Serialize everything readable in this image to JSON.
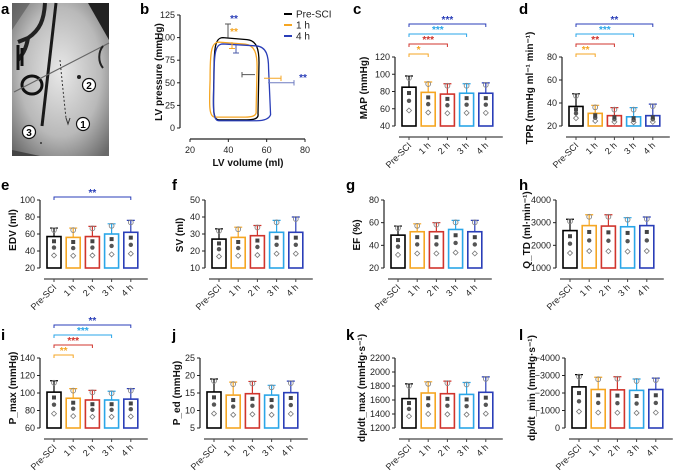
{
  "figure": {
    "panels": {
      "a": {
        "letter": "a",
        "type": "image",
        "description": "fluoroscopy image",
        "markers": [
          "1",
          "2",
          "3"
        ]
      }
    }
  },
  "colors": {
    "pre": "#000000",
    "h1": "#f5a623",
    "h2": "#d0342c",
    "h3": "#2aa6e8",
    "h4": "#2a3eb8"
  },
  "chart_data": [
    {
      "panel": "b",
      "type": "line",
      "title": "",
      "xlabel": "LV volume (ml)",
      "ylabel": "LV pressure (mmHg)",
      "xlim": [
        20,
        80
      ],
      "ylim": [
        0,
        125
      ],
      "xticks": [
        "20",
        "40",
        "60",
        "80"
      ],
      "yticks": [
        "0",
        "25",
        "50",
        "75",
        "100",
        "125"
      ],
      "legend": {
        "placement": "top-right",
        "entries": [
          "Pre-SCI",
          "1 h",
          "4 h"
        ]
      },
      "series": [
        {
          "name": "Pre-SCI",
          "color": "#000000",
          "esv": 33,
          "edv": 56,
          "pmin": 9,
          "pmax": 100
        },
        {
          "name": "1 h",
          "color": "#f5a623",
          "esv": 31,
          "edv": 55,
          "pmin": 12,
          "pmax": 95
        },
        {
          "name": "4 h",
          "color": "#2a3eb8",
          "esv": 33,
          "edv": 61,
          "pmin": 8,
          "pmax": 93
        }
      ],
      "annotations": [
        {
          "text": "**",
          "color": "#2a3eb8",
          "at": "pmax"
        },
        {
          "text": "**",
          "color": "#f5a623",
          "at": "pmax"
        },
        {
          "text": "**",
          "color": "#2a3eb8",
          "at": "edv"
        }
      ]
    },
    {
      "panel": "c",
      "type": "bar",
      "ylabel": "MAP (mmHg)",
      "categories": [
        "Pre-SCI",
        "1 h",
        "2 h",
        "3 h",
        "4 h"
      ],
      "values": [
        85,
        79,
        77,
        78,
        78
      ],
      "errors": [
        13,
        12,
        12,
        11,
        12
      ],
      "ylim": [
        40,
        120
      ],
      "yticks": [
        "40",
        "60",
        "80",
        "100",
        "120"
      ],
      "significance": [
        {
          "to": "1 h",
          "text": "*"
        },
        {
          "to": "2 h",
          "text": "***"
        },
        {
          "to": "3 h",
          "text": "***"
        },
        {
          "to": "4 h",
          "text": "***"
        }
      ]
    },
    {
      "panel": "d",
      "type": "bar",
      "ylabel": "TPR (mmHg ml⁻¹ min⁻¹)",
      "categories": [
        "Pre-SCI",
        "1 h",
        "2 h",
        "3 h",
        "4 h"
      ],
      "values": [
        37,
        31,
        29,
        28,
        29
      ],
      "errors": [
        11,
        7,
        7,
        8,
        10
      ],
      "ylim": [
        20,
        80
      ],
      "yticks": [
        "20",
        "40",
        "60",
        "80"
      ],
      "significance": [
        {
          "to": "1 h",
          "text": "**"
        },
        {
          "to": "2 h",
          "text": "**"
        },
        {
          "to": "3 h",
          "text": "***"
        },
        {
          "to": "4 h",
          "text": "**"
        }
      ]
    },
    {
      "panel": "e",
      "type": "bar",
      "ylabel": "EDV (ml)",
      "categories": [
        "Pre-SCI",
        "1 h",
        "2 h",
        "3 h",
        "4 h"
      ],
      "values": [
        57,
        56,
        57,
        60,
        62
      ],
      "errors": [
        10,
        11,
        12,
        12,
        14
      ],
      "ylim": [
        20,
        100
      ],
      "yticks": [
        "20",
        "40",
        "60",
        "80",
        "100"
      ],
      "significance": [
        {
          "to": "4 h",
          "text": "**"
        }
      ]
    },
    {
      "panel": "f",
      "type": "bar",
      "ylabel": "SV (ml)",
      "categories": [
        "Pre-SCI",
        "1 h",
        "2 h",
        "3 h",
        "4 h"
      ],
      "values": [
        27,
        28,
        29,
        31,
        31
      ],
      "errors": [
        6,
        6,
        6,
        7,
        9
      ],
      "ylim": [
        10,
        50
      ],
      "yticks": [
        "10",
        "20",
        "30",
        "40",
        "50"
      ],
      "significance": []
    },
    {
      "panel": "g",
      "type": "bar",
      "ylabel": "EF (%)",
      "categories": [
        "Pre-SCI",
        "1 h",
        "2 h",
        "3 h",
        "4 h"
      ],
      "values": [
        49,
        52,
        52,
        54,
        52
      ],
      "errors": [
        8,
        7,
        8,
        8,
        10
      ],
      "ylim": [
        20,
        80
      ],
      "yticks": [
        "20",
        "40",
        "60",
        "80"
      ],
      "significance": []
    },
    {
      "panel": "h",
      "type": "bar",
      "ylabel": "Q_TD (ml·min⁻¹)",
      "categories": [
        "Pre-SCI",
        "1 h",
        "2 h",
        "3 h",
        "4 h"
      ],
      "values": [
        2650,
        2870,
        2850,
        2820,
        2870
      ],
      "errors": [
        500,
        480,
        500,
        400,
        380
      ],
      "ylim": [
        1000,
        4000
      ],
      "yticks": [
        "1000",
        "2000",
        "3000",
        "4000"
      ],
      "significance": []
    },
    {
      "panel": "i",
      "type": "bar",
      "ylabel": "P_max (mmHg)",
      "categories": [
        "Pre-SCI",
        "1 h",
        "2 h",
        "3 h",
        "4 h"
      ],
      "values": [
        101,
        94,
        92,
        92,
        93
      ],
      "errors": [
        13,
        11,
        11,
        10,
        12
      ],
      "ylim": [
        60,
        140
      ],
      "yticks": [
        "60",
        "80",
        "100",
        "120",
        "140"
      ],
      "significance": [
        {
          "to": "1 h",
          "text": "**"
        },
        {
          "to": "2 h",
          "text": "***"
        },
        {
          "to": "3 h",
          "text": "***"
        },
        {
          "to": "4 h",
          "text": "**"
        }
      ]
    },
    {
      "panel": "j",
      "type": "bar",
      "ylabel": "P_ed (mmHg)",
      "categories": [
        "Pre-SCI",
        "1 h",
        "2 h",
        "3 h",
        "4 h"
      ],
      "values": [
        15.3,
        14.4,
        14.8,
        14.4,
        15.1
      ],
      "errors": [
        3.7,
        3.7,
        3.5,
        2.8,
        3.3
      ],
      "ylim": [
        5,
        25
      ],
      "yticks": [
        "5",
        "10",
        "15",
        "20",
        "25"
      ],
      "significance": []
    },
    {
      "panel": "k",
      "type": "bar",
      "ylabel": "dp/dt_max (mmHg·s⁻¹)",
      "categories": [
        "Pre-SCI",
        "1 h",
        "2 h",
        "3 h",
        "4 h"
      ],
      "values": [
        1620,
        1700,
        1690,
        1680,
        1710
      ],
      "errors": [
        210,
        160,
        180,
        170,
        220
      ],
      "ylim": [
        1200,
        2200
      ],
      "yticks": [
        "1200",
        "1400",
        "1600",
        "1800",
        "2000",
        "2200"
      ],
      "significance": []
    },
    {
      "panel": "l",
      "type": "bar",
      "ylabel": "dp/dt_min (mmHg·s⁻¹)",
      "categories": [
        "Pre-SCI",
        "1 h",
        "2 h",
        "3 h",
        "4 h"
      ],
      "values": [
        -2350,
        -2200,
        -2180,
        -2150,
        -2200
      ],
      "errors": [
        700,
        700,
        750,
        650,
        650
      ],
      "ylim": [
        0,
        -4000
      ],
      "yticks": [
        "0",
        "−1000",
        "−2000",
        "−3000",
        "−4000"
      ],
      "significance": []
    }
  ]
}
